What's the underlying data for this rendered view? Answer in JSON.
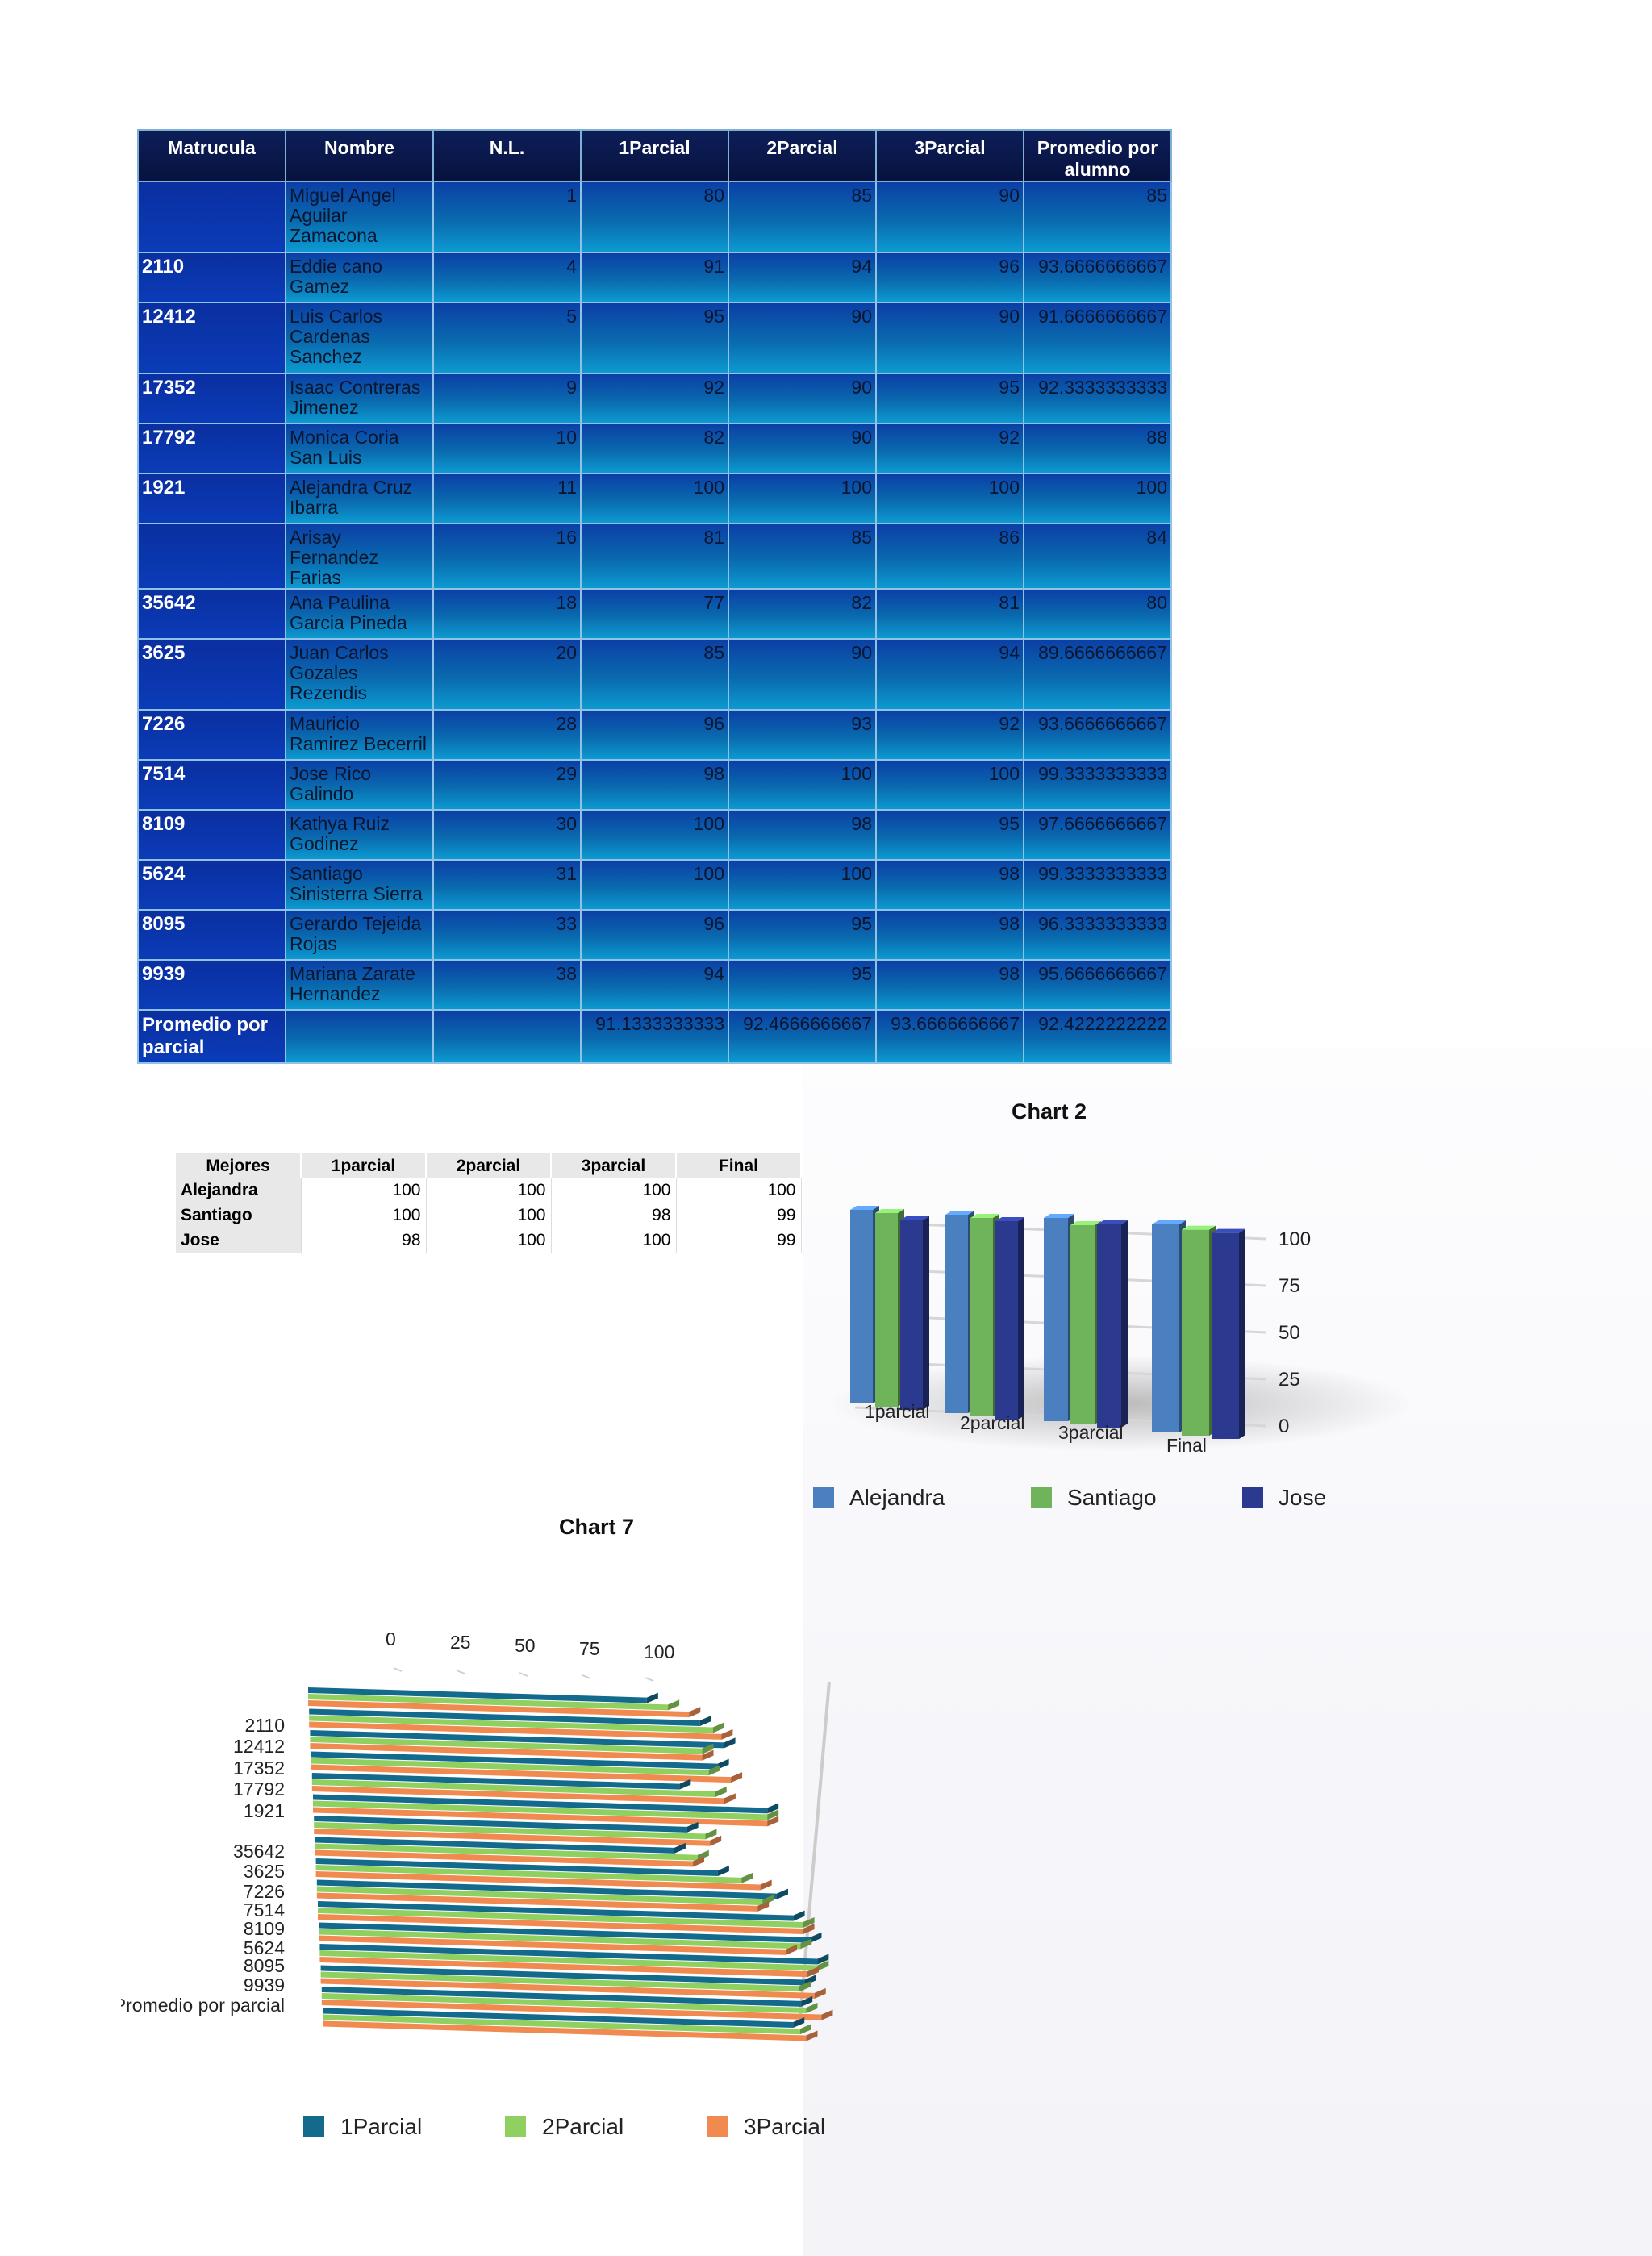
{
  "grades_table": {
    "headers": [
      "Matrucula",
      "Nombre",
      "N.L.",
      "1Parcial",
      "2Parcial",
      "3Parcial",
      "Promedio por alumno"
    ],
    "rows": [
      {
        "mat": "",
        "nombre": "Miguel Angel Aguilar Zamacona",
        "nl": "1",
        "p1": "80",
        "p2": "85",
        "p3": "90",
        "prom": "85"
      },
      {
        "mat": "2110",
        "nombre": "Eddie cano Gamez",
        "nl": "4",
        "p1": "91",
        "p2": "94",
        "p3": "96",
        "prom": "93.6666666667"
      },
      {
        "mat": "12412",
        "nombre": "Luis Carlos Cardenas Sanchez",
        "nl": "5",
        "p1": "95",
        "p2": "90",
        "p3": "90",
        "prom": "91.6666666667"
      },
      {
        "mat": "17352",
        "nombre": "Isaac Contreras Jimenez",
        "nl": "9",
        "p1": "92",
        "p2": "90",
        "p3": "95",
        "prom": "92.3333333333"
      },
      {
        "mat": "17792",
        "nombre": "Monica Coria San Luis",
        "nl": "10",
        "p1": "82",
        "p2": "90",
        "p3": "92",
        "prom": "88"
      },
      {
        "mat": "1921",
        "nombre": "Alejandra Cruz Ibarra",
        "nl": "11",
        "p1": "100",
        "p2": "100",
        "p3": "100",
        "prom": "100"
      },
      {
        "mat": "",
        "nombre": "Arisay Fernandez Farias",
        "nl": "16",
        "p1": "81",
        "p2": "85",
        "p3": "86",
        "prom": "84"
      },
      {
        "mat": "35642",
        "nombre": "Ana Paulina Garcia Pineda",
        "nl": "18",
        "p1": "77",
        "p2": "82",
        "p3": "81",
        "prom": "80"
      },
      {
        "mat": "3625",
        "nombre": "Juan Carlos Gozales Rezendis",
        "nl": "20",
        "p1": "85",
        "p2": "90",
        "p3": "94",
        "prom": "89.6666666667"
      },
      {
        "mat": "7226",
        "nombre": "Mauricio Ramirez Becerril",
        "nl": "28",
        "p1": "96",
        "p2": "93",
        "p3": "92",
        "prom": "93.6666666667"
      },
      {
        "mat": "7514",
        "nombre": "Jose Rico Galindo",
        "nl": "29",
        "p1": "98",
        "p2": "100",
        "p3": "100",
        "prom": "99.3333333333"
      },
      {
        "mat": "8109",
        "nombre": "Kathya Ruiz Godinez",
        "nl": "30",
        "p1": "100",
        "p2": "98",
        "p3": "95",
        "prom": "97.6666666667"
      },
      {
        "mat": "5624",
        "nombre": "Santiago Sinisterra Sierra",
        "nl": "31",
        "p1": "100",
        "p2": "100",
        "p3": "98",
        "prom": "99.3333333333"
      },
      {
        "mat": "8095",
        "nombre": "Gerardo Tejeida Rojas",
        "nl": "33",
        "p1": "96",
        "p2": "95",
        "p3": "98",
        "prom": "96.3333333333"
      },
      {
        "mat": "9939",
        "nombre": "Mariana Zarate Hernandez",
        "nl": "38",
        "p1": "94",
        "p2": "95",
        "p3": "98",
        "prom": "95.6666666667"
      }
    ],
    "summary": {
      "label": "Promedio por parcial",
      "p1": "91.1333333333",
      "p2": "92.4666666667",
      "p3": "93.6666666667",
      "prom": "92.4222222222"
    }
  },
  "best_table": {
    "headers": [
      "Mejores",
      "1parcial",
      "2parcial",
      "3parcial",
      "Final"
    ],
    "rows": [
      {
        "name": "Alejandra",
        "p1": "100",
        "p2": "100",
        "p3": "100",
        "final": "100"
      },
      {
        "name": "Santiago",
        "p1": "100",
        "p2": "100",
        "p3": "98",
        "final": "99"
      },
      {
        "name": "Jose",
        "p1": "98",
        "p2": "100",
        "p3": "100",
        "final": "99"
      }
    ]
  },
  "chart_data": [
    {
      "title": "Chart 2",
      "type": "bar",
      "categories": [
        "1parcial",
        "2parcial",
        "3parcial",
        "Final"
      ],
      "series": [
        {
          "name": "Alejandra",
          "values": [
            100,
            100,
            100,
            100
          ]
        },
        {
          "name": "Santiago",
          "values": [
            100,
            100,
            98,
            99
          ]
        },
        {
          "name": "Jose",
          "values": [
            98,
            100,
            100,
            99
          ]
        }
      ],
      "yticks": [
        "0",
        "25",
        "50",
        "75",
        "100"
      ],
      "ylim": [
        0,
        100
      ],
      "colors": [
        "#4a7fc0",
        "#6fb35a",
        "#2b3a8e"
      ],
      "legend": "bottom"
    },
    {
      "title": "Chart 7",
      "type": "bar",
      "orientation": "horizontal",
      "categories": [
        "",
        "2110",
        "12412",
        "17352",
        "17792",
        "1921",
        "",
        "35642",
        "3625",
        "7226",
        "7514",
        "8109",
        "5624",
        "8095",
        "9939",
        "Promedio por parcial"
      ],
      "series": [
        {
          "name": "1Parcial",
          "values": [
            80,
            91,
            95,
            92,
            82,
            100,
            81,
            77,
            85,
            96,
            98,
            100,
            100,
            96,
            94,
            91.13
          ]
        },
        {
          "name": "2Parcial",
          "values": [
            85,
            94,
            90,
            90,
            90,
            100,
            85,
            82,
            90,
            93,
            100,
            98,
            100,
            95,
            95,
            92.47
          ]
        },
        {
          "name": "3Parcial",
          "values": [
            90,
            96,
            90,
            95,
            92,
            100,
            86,
            81,
            94,
            92,
            100,
            95,
            98,
            98,
            98,
            93.67
          ]
        }
      ],
      "xticks": [
        "0",
        "25",
        "50",
        "75",
        "100"
      ],
      "xlim": [
        0,
        100
      ],
      "colors": [
        "#146a8c",
        "#8fd060",
        "#f08a50"
      ],
      "legend": "bottom"
    }
  ]
}
